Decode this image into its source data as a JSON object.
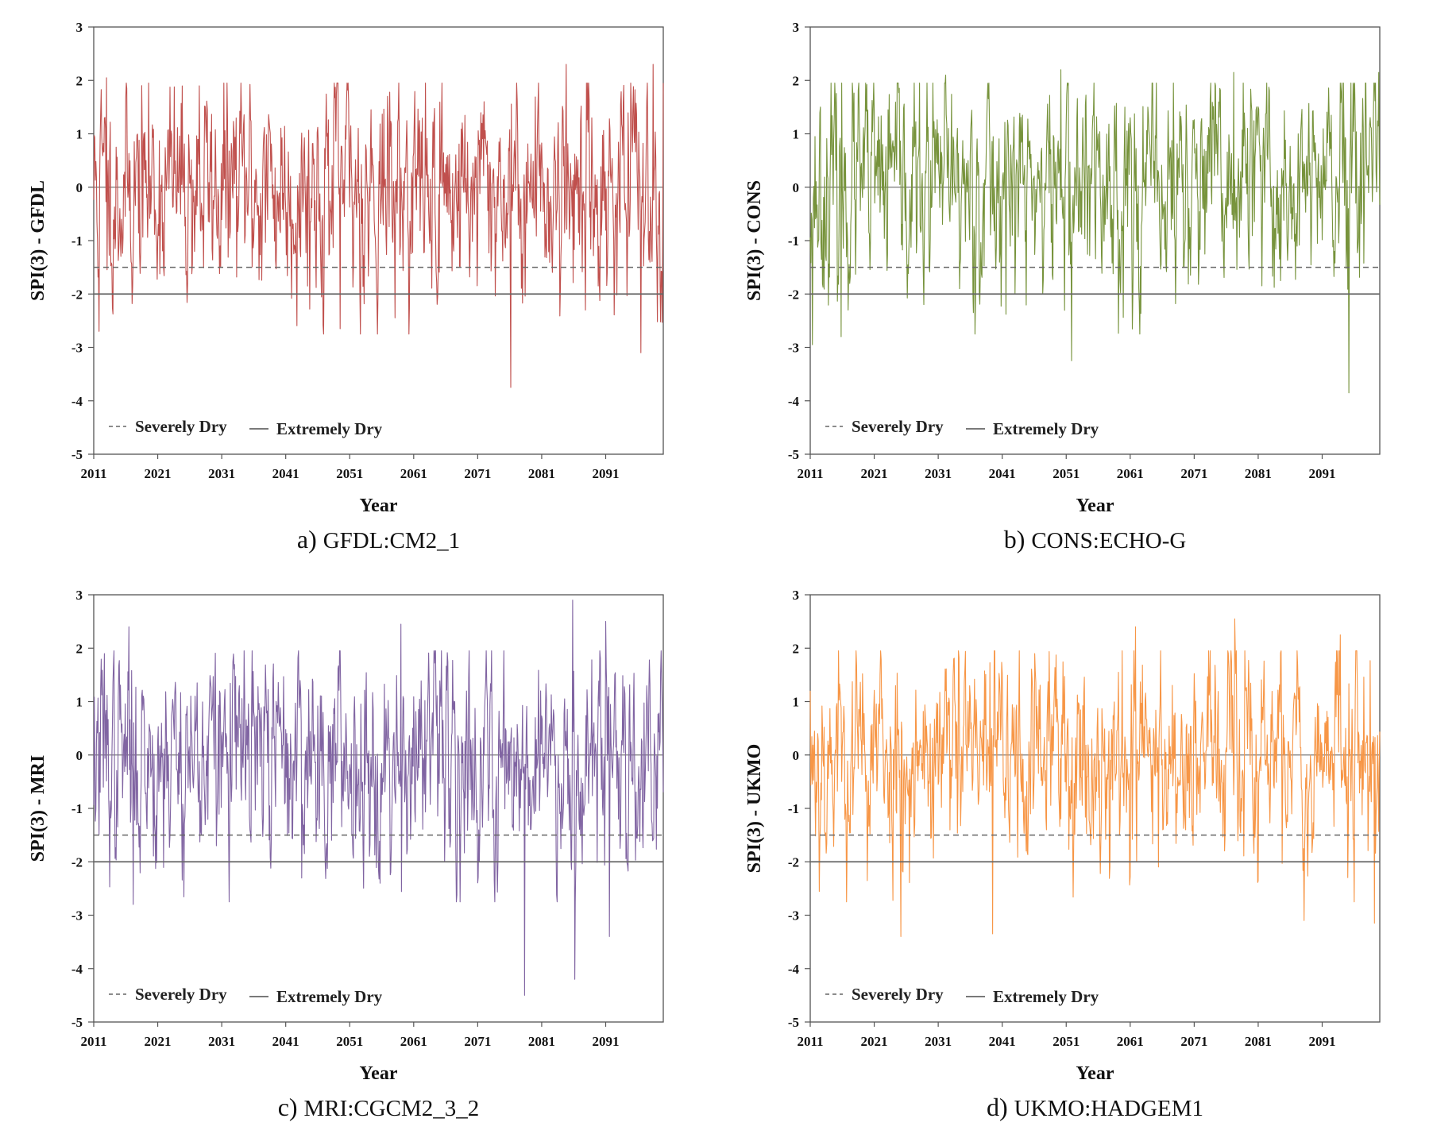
{
  "legend": {
    "severe_label": "Severely Dry",
    "extreme_label": "Extremely Dry"
  },
  "chart_data": [
    {
      "type": "line",
      "caption_letter": "a)",
      "caption_model": "GFDL:CM2_1",
      "ylabel": "SPI(3) - GFDL",
      "xlabel": "Year",
      "color": "#C0504D",
      "seed": 11,
      "xlim": [
        2011,
        2100
      ],
      "ylim": [
        -5,
        3
      ],
      "x_ticks": [
        2011,
        2021,
        2031,
        2041,
        2051,
        2061,
        2071,
        2081,
        2091
      ],
      "y_ticks": [
        3,
        2,
        1,
        0,
        -1,
        -2,
        -3,
        -4,
        -5
      ],
      "thresholds": {
        "severely_dry": -1.5,
        "extremely_dry": -2.0
      },
      "notable_points": [
        [
          2011.8,
          -2.7
        ],
        [
          2013.0,
          2.05
        ],
        [
          2027.5,
          1.9
        ],
        [
          2049.5,
          -2.65
        ],
        [
          2076.2,
          -3.75
        ],
        [
          2084.8,
          2.3
        ],
        [
          2096.5,
          -3.1
        ],
        [
          2098.4,
          2.3
        ]
      ]
    },
    {
      "type": "line",
      "caption_letter": "b)",
      "caption_model": "CONS:ECHO-G",
      "ylabel": "SPI(3) - CONS",
      "xlabel": "Year",
      "color": "#77933C",
      "seed": 23,
      "xlim": [
        2011,
        2100
      ],
      "ylim": [
        -5,
        3
      ],
      "x_ticks": [
        2011,
        2021,
        2031,
        2041,
        2051,
        2061,
        2071,
        2081,
        2091
      ],
      "y_ticks": [
        3,
        2,
        1,
        0,
        -1,
        -2,
        -3,
        -4,
        -5
      ],
      "thresholds": {
        "severely_dry": -1.5,
        "extremely_dry": -2.0
      },
      "notable_points": [
        [
          2011.3,
          -2.95
        ],
        [
          2015.8,
          -2.8
        ],
        [
          2032.2,
          2.1
        ],
        [
          2050.2,
          2.2
        ],
        [
          2051.8,
          -3.25
        ],
        [
          2077.2,
          2.15
        ],
        [
          2095.2,
          -3.85
        ],
        [
          2099.8,
          2.15
        ]
      ]
    },
    {
      "type": "line",
      "caption_letter": "c)",
      "caption_model": "MRI:CGCM2_3_2",
      "ylabel": "SPI(3) - MRI",
      "xlabel": "Year",
      "color": "#8064A2",
      "seed": 37,
      "xlim": [
        2011,
        2100
      ],
      "ylim": [
        -5,
        3
      ],
      "x_ticks": [
        2011,
        2021,
        2031,
        2041,
        2051,
        2061,
        2071,
        2081,
        2091
      ],
      "y_ticks": [
        3,
        2,
        1,
        0,
        -1,
        -2,
        -3,
        -4,
        -5
      ],
      "thresholds": {
        "severely_dry": -1.5,
        "extremely_dry": -2.0
      },
      "notable_points": [
        [
          2016.5,
          2.4
        ],
        [
          2017.2,
          -2.8
        ],
        [
          2059.0,
          2.45
        ],
        [
          2078.3,
          -4.5
        ],
        [
          2085.8,
          2.9
        ],
        [
          2086.2,
          -4.2
        ],
        [
          2091.0,
          2.5
        ],
        [
          2091.6,
          -3.4
        ]
      ]
    },
    {
      "type": "line",
      "caption_letter": "d)",
      "caption_model": "UKMO:HADGEM1",
      "ylabel": "SPI(3) - UKMO",
      "xlabel": "Year",
      "color": "#F79646",
      "seed": 53,
      "xlim": [
        2011,
        2100
      ],
      "ylim": [
        -5,
        3
      ],
      "x_ticks": [
        2011,
        2021,
        2031,
        2041,
        2051,
        2061,
        2071,
        2081,
        2091
      ],
      "y_ticks": [
        3,
        2,
        1,
        0,
        -1,
        -2,
        -3,
        -4,
        -5
      ],
      "thresholds": {
        "severely_dry": -1.5,
        "extremely_dry": -2.0
      },
      "notable_points": [
        [
          2025.2,
          -3.4
        ],
        [
          2039.5,
          -3.35
        ],
        [
          2061.8,
          2.4
        ],
        [
          2077.3,
          2.55
        ],
        [
          2088.2,
          -3.1
        ],
        [
          2093.8,
          2.25
        ],
        [
          2099.2,
          -3.15
        ]
      ]
    }
  ]
}
